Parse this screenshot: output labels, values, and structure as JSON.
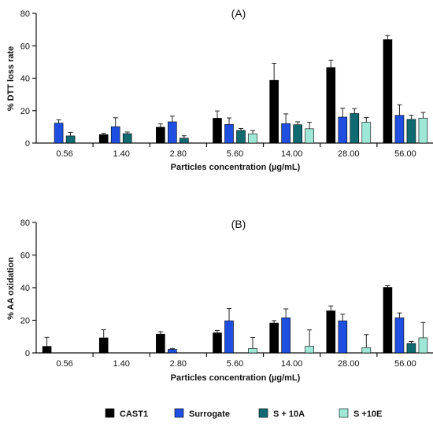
{
  "legend": [
    "CAST1",
    "Surrogate",
    "S + 10A",
    "S +10E"
  ],
  "colors": {
    "CAST1": "#000000",
    "Surrogate": "#1f4fe0",
    "S + 10A": "#0f6a72",
    "S +10E": "#9fe8d6"
  },
  "chart_data": [
    {
      "type": "bar",
      "title": "(A)",
      "xlabel": "Particles concentration (µg/mL)",
      "ylabel": "% DTT loss rate",
      "ylim": [
        0,
        80
      ],
      "yticks": [
        0,
        20,
        40,
        60,
        80
      ],
      "categories": [
        "0.56",
        "1.40",
        "2.80",
        "5.60",
        "14.00",
        "28.00",
        "56.00"
      ],
      "series": [
        {
          "name": "CAST1",
          "values": [
            0,
            5.2,
            9.8,
            15.3,
            38.7,
            46.6,
            63.8
          ],
          "errors": [
            0,
            0.8,
            2.0,
            4.5,
            10.5,
            4.5,
            2.5
          ]
        },
        {
          "name": "Surrogate",
          "values": [
            12.3,
            10.1,
            13.1,
            11.5,
            12.0,
            16.0,
            17.1
          ],
          "errors": [
            2.0,
            5.5,
            3.5,
            4.0,
            6.0,
            5.5,
            6.5
          ]
        },
        {
          "name": "S + 10A",
          "values": [
            4.4,
            5.8,
            3.0,
            7.8,
            11.3,
            18.2,
            14.6
          ],
          "errors": [
            2.2,
            1.0,
            1.5,
            1.2,
            1.8,
            3.0,
            2.5
          ]
        },
        {
          "name": "S +10E",
          "values": [
            0,
            0,
            0,
            5.7,
            8.8,
            12.8,
            15.4
          ],
          "errors": [
            0,
            0,
            0,
            2.0,
            4.0,
            3.0,
            3.5
          ]
        }
      ]
    },
    {
      "type": "bar",
      "title": "(B)",
      "xlabel": "Particles concentration (µg/mL)",
      "ylabel": "% AA oxidation",
      "ylim": [
        0,
        80
      ],
      "yticks": [
        0,
        20,
        40,
        60,
        80
      ],
      "categories": [
        "0.56",
        "1.40",
        "2.80",
        "5.60",
        "14.00",
        "28.00",
        "56.00"
      ],
      "series": [
        {
          "name": "CAST1",
          "values": [
            4.0,
            9.2,
            11.5,
            12.3,
            18.3,
            25.8,
            40.2
          ],
          "errors": [
            5.5,
            5.0,
            1.5,
            1.5,
            1.5,
            3.0,
            1.0
          ]
        },
        {
          "name": "Surrogate",
          "values": [
            0,
            0,
            2.2,
            19.7,
            21.5,
            19.7,
            21.5
          ],
          "errors": [
            0,
            0,
            0.5,
            7.5,
            5.5,
            4.0,
            3.0
          ]
        },
        {
          "name": "S + 10A",
          "values": [
            0,
            0,
            0,
            0,
            0,
            0,
            5.8
          ],
          "errors": [
            0,
            0,
            0,
            0,
            0,
            0,
            1.2
          ]
        },
        {
          "name": "S +10E",
          "values": [
            0,
            0,
            0,
            2.7,
            4.1,
            3.2,
            9.2
          ],
          "errors": [
            0,
            0,
            0,
            6.7,
            10.0,
            8.0,
            9.5
          ]
        }
      ]
    }
  ]
}
